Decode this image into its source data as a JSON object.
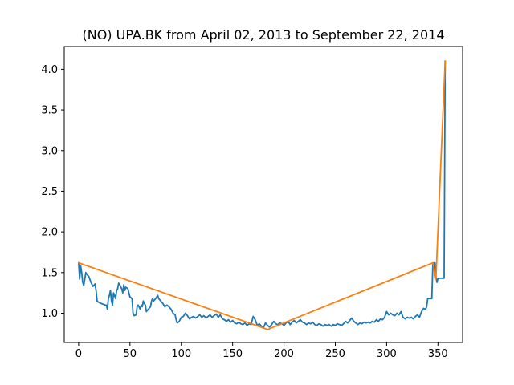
{
  "chart_data": {
    "type": "line",
    "title": "(NO) UPA.BK from April 02, 2013 to September 22, 2014",
    "xlabel": "",
    "ylabel": "",
    "xlim": [
      -14,
      374
    ],
    "ylim": [
      0.64,
      4.28
    ],
    "x_ticks": [
      0,
      50,
      100,
      150,
      200,
      250,
      300,
      350
    ],
    "y_ticks": [
      1.0,
      1.5,
      2.0,
      2.5,
      3.0,
      3.5,
      4.0
    ],
    "x_tick_labels": [
      "0",
      "50",
      "100",
      "150",
      "200",
      "250",
      "300",
      "350"
    ],
    "y_tick_labels": [
      "1.0",
      "1.5",
      "2.0",
      "2.5",
      "3.0",
      "3.5",
      "4.0"
    ],
    "grid": false,
    "series": [
      {
        "color": "#1f77b4",
        "points": [
          [
            0,
            1.62
          ],
          [
            1,
            1.42
          ],
          [
            2,
            1.58
          ],
          [
            3,
            1.5
          ],
          [
            4,
            1.38
          ],
          [
            5,
            1.34
          ],
          [
            6,
            1.42
          ],
          [
            7,
            1.5
          ],
          [
            8,
            1.48
          ],
          [
            10,
            1.45
          ],
          [
            12,
            1.38
          ],
          [
            14,
            1.33
          ],
          [
            16,
            1.36
          ],
          [
            17,
            1.28
          ],
          [
            18,
            1.15
          ],
          [
            20,
            1.13
          ],
          [
            22,
            1.12
          ],
          [
            24,
            1.11
          ],
          [
            26,
            1.1
          ],
          [
            27,
            1.1
          ],
          [
            28,
            1.05
          ],
          [
            29,
            1.18
          ],
          [
            30,
            1.22
          ],
          [
            31,
            1.28
          ],
          [
            32,
            1.15
          ],
          [
            33,
            1.1
          ],
          [
            34,
            1.25
          ],
          [
            35,
            1.22
          ],
          [
            36,
            1.18
          ],
          [
            37,
            1.28
          ],
          [
            38,
            1.3
          ],
          [
            39,
            1.37
          ],
          [
            40,
            1.35
          ],
          [
            42,
            1.3
          ],
          [
            43,
            1.25
          ],
          [
            44,
            1.35
          ],
          [
            45,
            1.28
          ],
          [
            46,
            1.32
          ],
          [
            48,
            1.3
          ],
          [
            50,
            1.2
          ],
          [
            52,
            1.18
          ],
          [
            53,
            1.0
          ],
          [
            54,
            0.97
          ],
          [
            56,
            0.98
          ],
          [
            57,
            1.08
          ],
          [
            58,
            1.1
          ],
          [
            60,
            1.05
          ],
          [
            61,
            1.1
          ],
          [
            62,
            1.08
          ],
          [
            63,
            1.15
          ],
          [
            64,
            1.12
          ],
          [
            65,
            1.1
          ],
          [
            66,
            1.02
          ],
          [
            68,
            1.05
          ],
          [
            70,
            1.08
          ],
          [
            71,
            1.15
          ],
          [
            72,
            1.18
          ],
          [
            73,
            1.15
          ],
          [
            75,
            1.18
          ],
          [
            77,
            1.22
          ],
          [
            78,
            1.18
          ],
          [
            80,
            1.15
          ],
          [
            82,
            1.12
          ],
          [
            84,
            1.08
          ],
          [
            86,
            1.1
          ],
          [
            88,
            1.08
          ],
          [
            90,
            1.05
          ],
          [
            92,
            1.0
          ],
          [
            94,
            0.98
          ],
          [
            95,
            0.92
          ],
          [
            96,
            0.88
          ],
          [
            98,
            0.9
          ],
          [
            100,
            0.95
          ],
          [
            102,
            0.96
          ],
          [
            104,
            1.0
          ],
          [
            106,
            0.97
          ],
          [
            108,
            0.93
          ],
          [
            110,
            0.95
          ],
          [
            112,
            0.96
          ],
          [
            114,
            0.94
          ],
          [
            116,
            0.96
          ],
          [
            118,
            0.98
          ],
          [
            120,
            0.95
          ],
          [
            122,
            0.97
          ],
          [
            124,
            0.94
          ],
          [
            126,
            0.96
          ],
          [
            128,
            0.98
          ],
          [
            130,
            0.95
          ],
          [
            132,
            0.97
          ],
          [
            134,
            0.99
          ],
          [
            136,
            0.95
          ],
          [
            138,
            0.98
          ],
          [
            140,
            0.93
          ],
          [
            142,
            0.92
          ],
          [
            144,
            0.9
          ],
          [
            146,
            0.92
          ],
          [
            148,
            0.89
          ],
          [
            150,
            0.91
          ],
          [
            152,
            0.88
          ],
          [
            154,
            0.87
          ],
          [
            156,
            0.89
          ],
          [
            158,
            0.87
          ],
          [
            160,
            0.86
          ],
          [
            162,
            0.88
          ],
          [
            164,
            0.85
          ],
          [
            166,
            0.87
          ],
          [
            168,
            0.86
          ],
          [
            170,
            0.96
          ],
          [
            172,
            0.92
          ],
          [
            174,
            0.85
          ],
          [
            176,
            0.87
          ],
          [
            178,
            0.84
          ],
          [
            180,
            0.82
          ],
          [
            182,
            0.88
          ],
          [
            184,
            0.85
          ],
          [
            186,
            0.83
          ],
          [
            188,
            0.86
          ],
          [
            190,
            0.9
          ],
          [
            192,
            0.87
          ],
          [
            194,
            0.86
          ],
          [
            196,
            0.88
          ],
          [
            198,
            0.87
          ],
          [
            200,
            0.85
          ],
          [
            202,
            0.88
          ],
          [
            204,
            0.9
          ],
          [
            206,
            0.86
          ],
          [
            208,
            0.89
          ],
          [
            210,
            0.91
          ],
          [
            212,
            0.88
          ],
          [
            214,
            0.9
          ],
          [
            216,
            0.92
          ],
          [
            218,
            0.89
          ],
          [
            220,
            0.88
          ],
          [
            222,
            0.86
          ],
          [
            224,
            0.88
          ],
          [
            226,
            0.87
          ],
          [
            228,
            0.89
          ],
          [
            230,
            0.86
          ],
          [
            232,
            0.85
          ],
          [
            234,
            0.87
          ],
          [
            236,
            0.86
          ],
          [
            238,
            0.84
          ],
          [
            240,
            0.86
          ],
          [
            242,
            0.85
          ],
          [
            244,
            0.86
          ],
          [
            246,
            0.84
          ],
          [
            248,
            0.86
          ],
          [
            250,
            0.85
          ],
          [
            252,
            0.87
          ],
          [
            254,
            0.86
          ],
          [
            256,
            0.85
          ],
          [
            258,
            0.87
          ],
          [
            260,
            0.9
          ],
          [
            262,
            0.88
          ],
          [
            264,
            0.91
          ],
          [
            266,
            0.94
          ],
          [
            268,
            0.9
          ],
          [
            270,
            0.88
          ],
          [
            272,
            0.86
          ],
          [
            274,
            0.88
          ],
          [
            276,
            0.87
          ],
          [
            278,
            0.89
          ],
          [
            280,
            0.88
          ],
          [
            282,
            0.89
          ],
          [
            284,
            0.88
          ],
          [
            286,
            0.9
          ],
          [
            288,
            0.89
          ],
          [
            290,
            0.92
          ],
          [
            292,
            0.9
          ],
          [
            294,
            0.93
          ],
          [
            296,
            0.92
          ],
          [
            298,
            0.95
          ],
          [
            300,
            1.02
          ],
          [
            302,
            0.98
          ],
          [
            304,
            1.0
          ],
          [
            306,
            0.98
          ],
          [
            308,
            0.97
          ],
          [
            310,
            1.0
          ],
          [
            312,
            0.98
          ],
          [
            314,
            1.02
          ],
          [
            316,
            0.95
          ],
          [
            318,
            0.93
          ],
          [
            320,
            0.95
          ],
          [
            322,
            0.94
          ],
          [
            324,
            0.95
          ],
          [
            326,
            0.93
          ],
          [
            328,
            0.96
          ],
          [
            330,
            0.98
          ],
          [
            332,
            0.95
          ],
          [
            334,
            1.02
          ],
          [
            336,
            1.06
          ],
          [
            338,
            1.05
          ],
          [
            339,
            1.08
          ],
          [
            340,
            1.18
          ],
          [
            342,
            1.18
          ],
          [
            344,
            1.18
          ],
          [
            345,
            1.6
          ],
          [
            346,
            1.62
          ],
          [
            347,
            1.62
          ],
          [
            348,
            1.45
          ],
          [
            349,
            1.38
          ],
          [
            350,
            1.43
          ],
          [
            352,
            1.43
          ],
          [
            354,
            1.43
          ],
          [
            356,
            1.43
          ],
          [
            357,
            4.1
          ]
        ]
      },
      {
        "color": "#ff7f0e",
        "points": [
          [
            0,
            1.62
          ],
          [
            184,
            0.8
          ],
          [
            345,
            1.62
          ],
          [
            348,
            1.42
          ],
          [
            357,
            4.1
          ]
        ]
      }
    ]
  }
}
